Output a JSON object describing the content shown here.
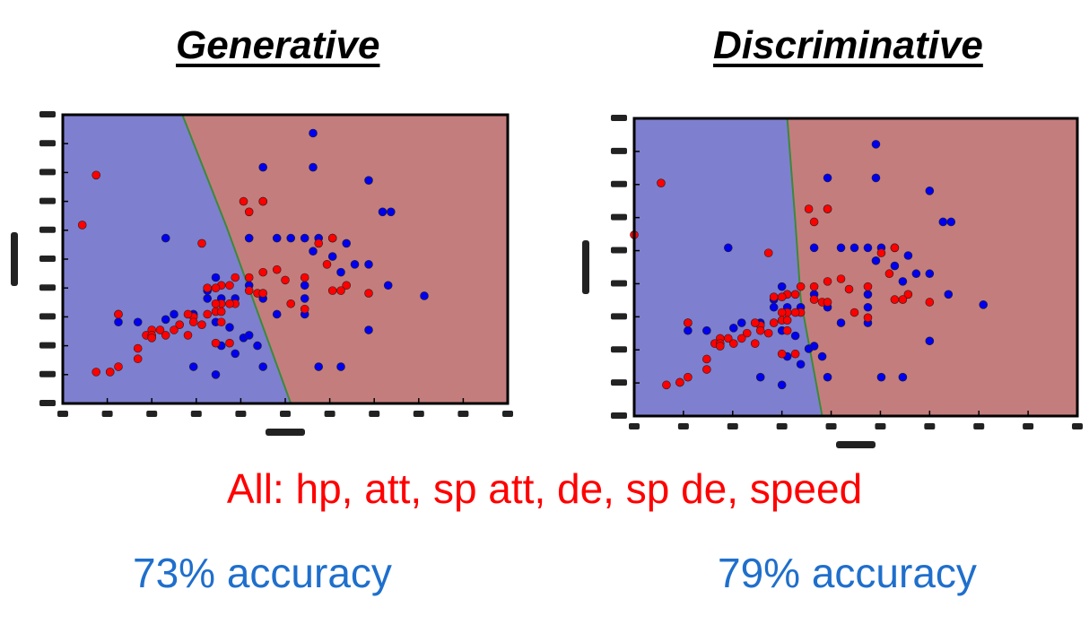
{
  "titles": {
    "generative": "Generative",
    "discriminative": "Discriminative"
  },
  "features_text": "All: hp, att, sp att, de, sp de, speed",
  "accuracy": {
    "generative": "73% accuracy",
    "discriminative": "79% accuracy"
  },
  "colors": {
    "region_blue": "#7f7fcf",
    "region_red": "#c47d7d",
    "point_blue": "#0000ee",
    "point_red": "#ff0000",
    "boundary": "#3a8a3a",
    "feature_text": "#ff0000",
    "accuracy_text": "#1f6fcc"
  },
  "chart_data": [
    {
      "type": "scatter",
      "title": "Generative",
      "xlim": [
        0,
        160
      ],
      "ylim": [
        0,
        110
      ],
      "grid": false,
      "decision_boundary": [
        [
          43,
          110
        ],
        [
          59,
          67
        ],
        [
          82,
          0
        ]
      ],
      "series": [
        {
          "color": "blue",
          "points": [
            [
              90,
              103
            ],
            [
              72,
              90
            ],
            [
              90,
              90
            ],
            [
              110,
              85
            ],
            [
              72,
              77
            ],
            [
              118,
              73
            ],
            [
              115,
              73
            ],
            [
              67,
              63
            ],
            [
              77,
              63
            ],
            [
              82,
              63
            ],
            [
              87,
              63
            ],
            [
              92,
              63
            ],
            [
              97,
              63
            ],
            [
              37,
              63
            ],
            [
              102,
              61
            ],
            [
              90,
              58
            ],
            [
              97,
              56
            ],
            [
              105,
              53
            ],
            [
              110,
              53
            ],
            [
              55,
              48
            ],
            [
              100,
              50
            ],
            [
              87,
              45
            ],
            [
              117,
              45
            ],
            [
              67,
              45
            ],
            [
              52,
              43
            ],
            [
              52,
              40
            ],
            [
              57,
              40
            ],
            [
              62,
              40
            ],
            [
              72,
              40
            ],
            [
              87,
              40
            ],
            [
              130,
              41
            ],
            [
              20,
              34
            ],
            [
              40,
              34
            ],
            [
              37,
              32
            ],
            [
              47,
              34
            ],
            [
              27,
              31
            ],
            [
              20,
              31
            ],
            [
              55,
              31
            ],
            [
              60,
              29
            ],
            [
              77,
              34
            ],
            [
              87,
              34
            ],
            [
              110,
              28
            ],
            [
              65,
              25
            ],
            [
              67,
              26
            ],
            [
              70,
              22
            ],
            [
              57,
              22
            ],
            [
              62,
              19
            ],
            [
              72,
              14
            ],
            [
              47,
              14
            ],
            [
              92,
              14
            ],
            [
              100,
              14
            ],
            [
              17,
              12
            ],
            [
              55,
              11
            ]
          ]
        },
        {
          "color": "red",
          "points": [
            [
              12,
              87
            ],
            [
              7,
              68
            ],
            [
              72,
              77
            ],
            [
              67,
              73
            ],
            [
              65,
              77
            ],
            [
              50,
              61
            ],
            [
              97,
              63
            ],
            [
              92,
              61
            ],
            [
              77,
              51
            ],
            [
              95,
              53
            ],
            [
              102,
              45
            ],
            [
              87,
              48
            ],
            [
              80,
              47
            ],
            [
              72,
              50
            ],
            [
              67,
              48
            ],
            [
              62,
              48
            ],
            [
              60,
              45
            ],
            [
              57,
              45
            ],
            [
              55,
              44
            ],
            [
              52,
              44
            ],
            [
              100,
              43
            ],
            [
              97,
              43
            ],
            [
              110,
              42
            ],
            [
              67,
              43
            ],
            [
              70,
              42
            ],
            [
              72,
              42
            ],
            [
              62,
              38
            ],
            [
              60,
              38
            ],
            [
              57,
              38
            ],
            [
              55,
              38
            ],
            [
              87,
              36
            ],
            [
              82,
              38
            ],
            [
              55,
              35
            ],
            [
              57,
              35
            ],
            [
              52,
              34
            ],
            [
              47,
              33
            ],
            [
              45,
              34
            ],
            [
              42,
              30
            ],
            [
              40,
              28
            ],
            [
              35,
              28
            ],
            [
              32,
              28
            ],
            [
              30,
              26
            ],
            [
              32,
              26
            ],
            [
              27,
              21
            ],
            [
              20,
              34
            ],
            [
              47,
              31
            ],
            [
              50,
              30
            ],
            [
              57,
              31
            ],
            [
              37,
              26
            ],
            [
              45,
              26
            ],
            [
              55,
              23
            ],
            [
              60,
              23
            ],
            [
              32,
              25
            ],
            [
              27,
              17
            ],
            [
              20,
              14
            ],
            [
              17,
              12
            ],
            [
              12,
              12
            ]
          ]
        }
      ]
    },
    {
      "type": "scatter",
      "title": "Discriminative",
      "xlim": [
        0,
        165
      ],
      "ylim": [
        0,
        115
      ],
      "grid": false,
      "decision_boundary": [
        [
          57,
          115
        ],
        [
          60,
          75
        ],
        [
          62,
          45
        ],
        [
          70,
          0
        ]
      ],
      "series": [
        {
          "color": "blue",
          "points": [
            [
              90,
              105
            ],
            [
              72,
              92
            ],
            [
              90,
              92
            ],
            [
              110,
              87
            ],
            [
              72,
              80
            ],
            [
              118,
              75
            ],
            [
              115,
              75
            ],
            [
              67,
              65
            ],
            [
              77,
              65
            ],
            [
              82,
              65
            ],
            [
              87,
              65
            ],
            [
              92,
              65
            ],
            [
              97,
              65
            ],
            [
              35,
              65
            ],
            [
              102,
              62
            ],
            [
              90,
              60
            ],
            [
              97,
              58
            ],
            [
              105,
              55
            ],
            [
              110,
              55
            ],
            [
              55,
              50
            ],
            [
              100,
              52
            ],
            [
              87,
              47
            ],
            [
              117,
              47
            ],
            [
              67,
              47
            ],
            [
              52,
              45
            ],
            [
              52,
              42
            ],
            [
              57,
              42
            ],
            [
              62,
              42
            ],
            [
              72,
              42
            ],
            [
              87,
              42
            ],
            [
              130,
              43
            ],
            [
              20,
              36
            ],
            [
              40,
              36
            ],
            [
              37,
              34
            ],
            [
              47,
              36
            ],
            [
              27,
              33
            ],
            [
              20,
              33
            ],
            [
              55,
              33
            ],
            [
              60,
              31
            ],
            [
              77,
              36
            ],
            [
              87,
              36
            ],
            [
              110,
              29
            ],
            [
              65,
              26
            ],
            [
              67,
              27
            ],
            [
              70,
              23
            ],
            [
              57,
              23
            ],
            [
              62,
              20
            ],
            [
              72,
              15
            ],
            [
              47,
              15
            ],
            [
              92,
              15
            ],
            [
              100,
              15
            ],
            [
              17,
              13
            ],
            [
              55,
              12
            ]
          ]
        },
        {
          "color": "red",
          "points": [
            [
              10,
              90
            ],
            [
              0,
              70
            ],
            [
              72,
              80
            ],
            [
              67,
              75
            ],
            [
              65,
              80
            ],
            [
              50,
              63
            ],
            [
              97,
              65
            ],
            [
              92,
              63
            ],
            [
              77,
              53
            ],
            [
              95,
              55
            ],
            [
              102,
              47
            ],
            [
              87,
              50
            ],
            [
              80,
              49
            ],
            [
              72,
              52
            ],
            [
              67,
              50
            ],
            [
              62,
              50
            ],
            [
              60,
              47
            ],
            [
              57,
              47
            ],
            [
              55,
              46
            ],
            [
              52,
              46
            ],
            [
              100,
              45
            ],
            [
              97,
              45
            ],
            [
              110,
              44
            ],
            [
              67,
              45
            ],
            [
              70,
              44
            ],
            [
              72,
              44
            ],
            [
              62,
              40
            ],
            [
              60,
              40
            ],
            [
              57,
              40
            ],
            [
              55,
              40
            ],
            [
              87,
              38
            ],
            [
              82,
              40
            ],
            [
              55,
              37
            ],
            [
              57,
              37
            ],
            [
              52,
              36
            ],
            [
              47,
              35
            ],
            [
              45,
              36
            ],
            [
              42,
              32
            ],
            [
              40,
              30
            ],
            [
              35,
              30
            ],
            [
              32,
              30
            ],
            [
              30,
              28
            ],
            [
              32,
              28
            ],
            [
              27,
              22
            ],
            [
              20,
              36
            ],
            [
              47,
              33
            ],
            [
              50,
              32
            ],
            [
              57,
              33
            ],
            [
              37,
              28
            ],
            [
              45,
              28
            ],
            [
              55,
              24
            ],
            [
              60,
              24
            ],
            [
              32,
              27
            ],
            [
              27,
              18
            ],
            [
              20,
              15
            ],
            [
              17,
              13
            ],
            [
              12,
              12
            ]
          ]
        }
      ]
    }
  ]
}
